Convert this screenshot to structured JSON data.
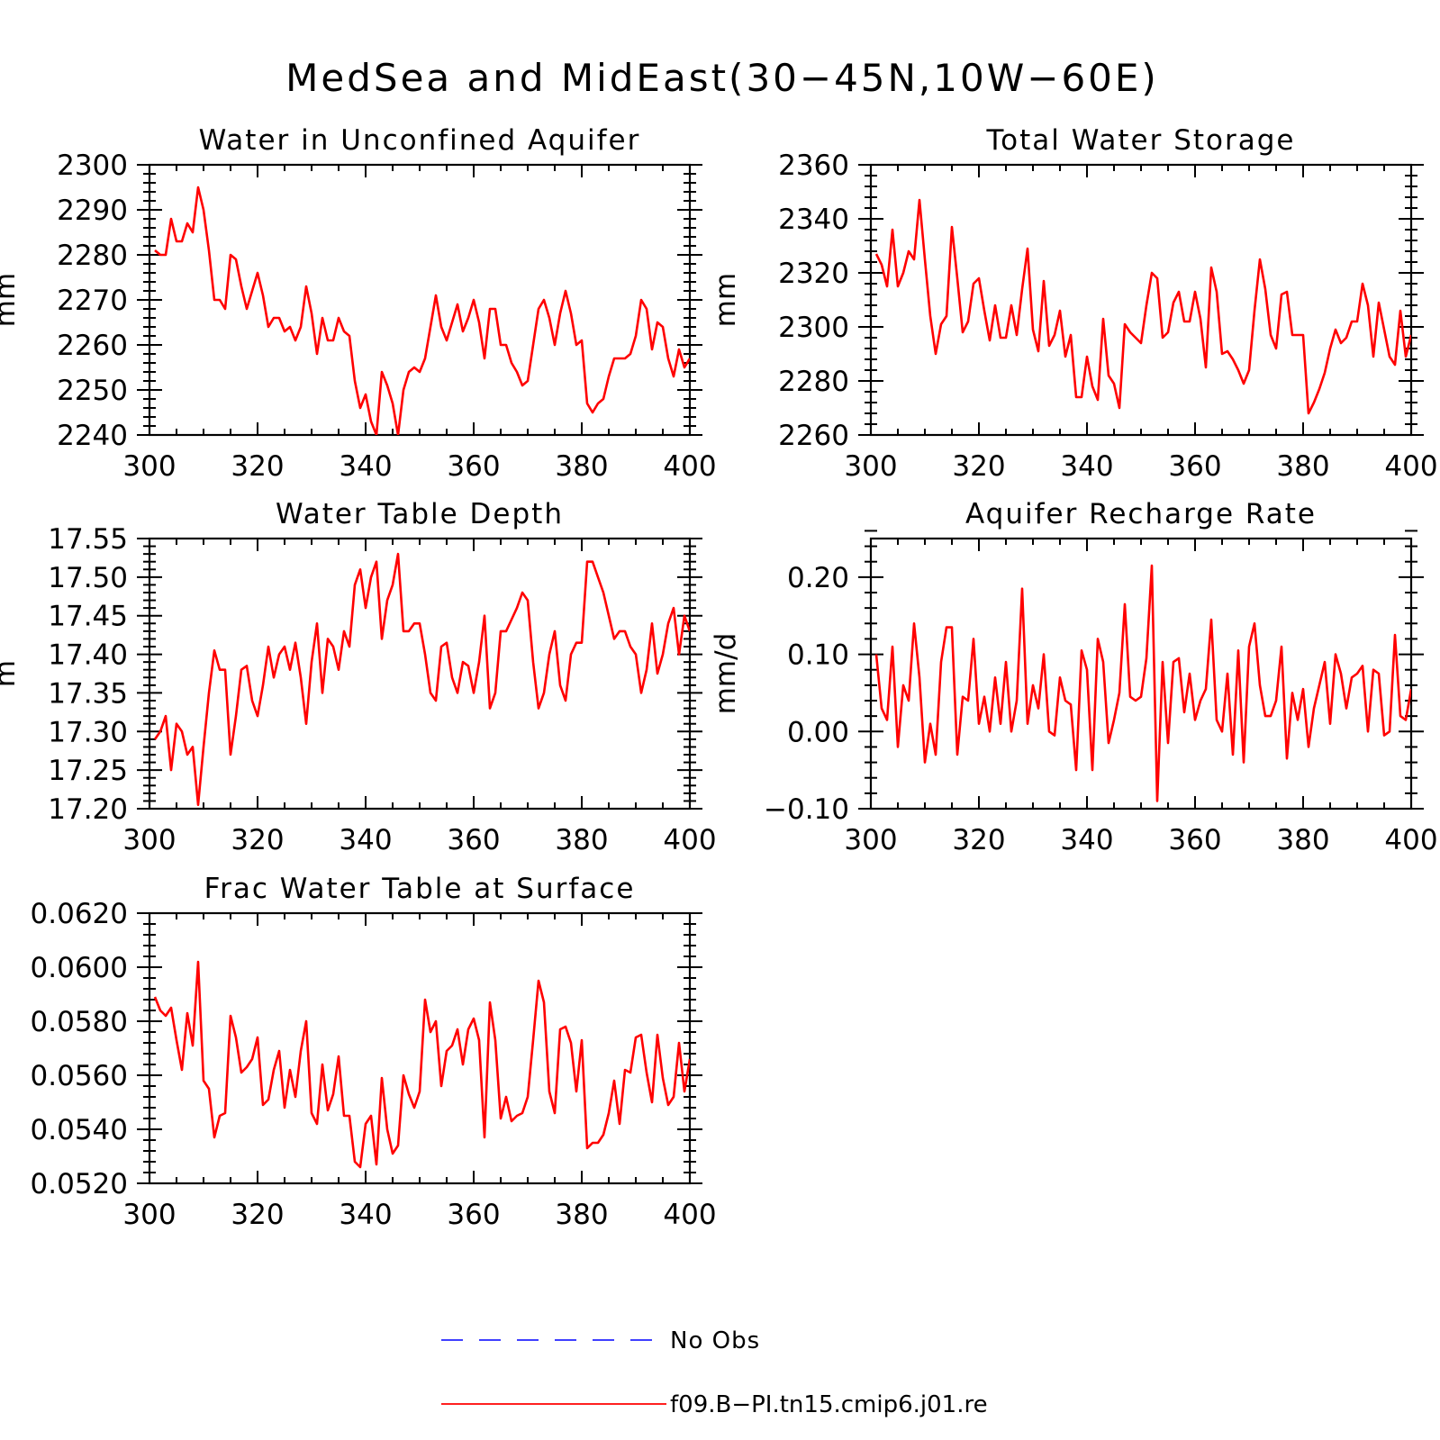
{
  "figure_title": "MedSea and MidEast(30−45N,10W−60E)",
  "colors": {
    "model": "#ff0000",
    "obs": "#0000ff",
    "axes": "#000000"
  },
  "legend": {
    "items": [
      {
        "label": "No Obs",
        "style": "dashed",
        "color": "#0000ff"
      },
      {
        "label": "f09.B−PI.tn15.cmip6.j01.re",
        "style": "solid",
        "color": "#ff0000"
      }
    ]
  },
  "chart_data": [
    {
      "id": "p1",
      "type": "line",
      "title": "Water in Unconfined Aquifer",
      "ylabel": "mm",
      "xlim": [
        300,
        400
      ],
      "ylim": [
        2240,
        2300
      ],
      "xticks": [
        "300",
        "320",
        "340",
        "360",
        "380",
        "400"
      ],
      "yticks": [
        "2240",
        "2250",
        "2260",
        "2270",
        "2280",
        "2290",
        "2300"
      ],
      "x_start": 301,
      "series": [
        {
          "values": [
            2281,
            2280,
            2280,
            2288,
            2283,
            2283,
            2287,
            2285,
            2295,
            2290,
            2281,
            2270,
            2270,
            2268,
            2280,
            2279,
            2273,
            2268,
            2272,
            2276,
            2271,
            2264,
            2266,
            2266,
            2263,
            2264,
            2261,
            2264,
            2273,
            2267,
            2258,
            2266,
            2261,
            2261,
            2266,
            2263,
            2262,
            2252,
            2246,
            2249,
            2243,
            2240,
            2254,
            2251,
            2247,
            2240,
            2250,
            2254,
            2255,
            2254,
            2257,
            2264,
            2271,
            2264,
            2261,
            2265,
            2269,
            2263,
            2266,
            2270,
            2265,
            2257,
            2268,
            2268,
            2260,
            2260,
            2256,
            2254,
            2251,
            2252,
            2260,
            2268,
            2270,
            2266,
            2260,
            2267,
            2272,
            2267,
            2260,
            2261,
            2247,
            2245,
            2247,
            2248,
            2253,
            2257,
            2257,
            2257,
            2258,
            2262,
            2270,
            2268,
            2259,
            2265,
            2264,
            2257,
            2253,
            2259,
            2255,
            2257
          ]
        }
      ]
    },
    {
      "id": "p2",
      "type": "line",
      "title": "Total Water Storage",
      "ylabel": "mm",
      "xlim": [
        300,
        400
      ],
      "ylim": [
        2260,
        2360
      ],
      "xticks": [
        "300",
        "320",
        "340",
        "360",
        "380",
        "400"
      ],
      "yticks": [
        "2260",
        "2280",
        "2300",
        "2320",
        "2340",
        "2360"
      ],
      "x_start": 301,
      "series": [
        {
          "values": [
            2327,
            2323,
            2315,
            2336,
            2315,
            2320,
            2328,
            2325,
            2347,
            2325,
            2304,
            2290,
            2301,
            2304,
            2337,
            2318,
            2298,
            2302,
            2316,
            2318,
            2306,
            2295,
            2308,
            2296,
            2296,
            2308,
            2297,
            2314,
            2329,
            2299,
            2291,
            2317,
            2293,
            2297,
            2306,
            2289,
            2297,
            2274,
            2274,
            2289,
            2278,
            2273,
            2303,
            2282,
            2279,
            2270,
            2301,
            2298,
            2296,
            2294,
            2308,
            2320,
            2318,
            2296,
            2298,
            2309,
            2313,
            2302,
            2302,
            2313,
            2303,
            2285,
            2322,
            2313,
            2290,
            2291,
            2288,
            2284,
            2279,
            2284,
            2306,
            2325,
            2314,
            2297,
            2292,
            2312,
            2313,
            2297,
            2297,
            2297,
            2268,
            2272,
            2277,
            2283,
            2292,
            2299,
            2294,
            2296,
            2302,
            2302,
            2316,
            2308,
            2289,
            2309,
            2299,
            2289,
            2286,
            2306,
            2289,
            2297
          ]
        }
      ]
    },
    {
      "id": "p3",
      "type": "line",
      "title": "Water Table Depth",
      "ylabel": "m",
      "xlim": [
        300,
        400
      ],
      "ylim": [
        17.2,
        17.55
      ],
      "xticks": [
        "300",
        "320",
        "340",
        "360",
        "380",
        "400"
      ],
      "yticks": [
        "17.20",
        "17.25",
        "17.30",
        "17.35",
        "17.40",
        "17.45",
        "17.50",
        "17.55"
      ],
      "x_start": 301,
      "series": [
        {
          "values": [
            17.29,
            17.3,
            17.32,
            17.25,
            17.31,
            17.3,
            17.27,
            17.28,
            17.205,
            17.28,
            17.35,
            17.405,
            17.38,
            17.38,
            17.27,
            17.32,
            17.38,
            17.385,
            17.34,
            17.32,
            17.36,
            17.41,
            17.37,
            17.4,
            17.41,
            17.38,
            17.415,
            17.37,
            17.31,
            17.39,
            17.44,
            17.35,
            17.42,
            17.41,
            17.38,
            17.43,
            17.41,
            17.49,
            17.51,
            17.46,
            17.5,
            17.52,
            17.42,
            17.47,
            17.49,
            17.53,
            17.43,
            17.43,
            17.44,
            17.44,
            17.4,
            17.35,
            17.34,
            17.41,
            17.415,
            17.37,
            17.35,
            17.39,
            17.385,
            17.35,
            17.39,
            17.45,
            17.33,
            17.35,
            17.43,
            17.43,
            17.445,
            17.46,
            17.48,
            17.47,
            17.39,
            17.33,
            17.35,
            17.4,
            17.43,
            17.36,
            17.34,
            17.4,
            17.415,
            17.415,
            17.52,
            17.52,
            17.5,
            17.48,
            17.45,
            17.42,
            17.43,
            17.43,
            17.41,
            17.4,
            17.35,
            17.38,
            17.44,
            17.375,
            17.4,
            17.44,
            17.46,
            17.4,
            17.45,
            17.43
          ]
        }
      ]
    },
    {
      "id": "p4",
      "type": "line",
      "title": "Aquifer Recharge Rate",
      "ylabel": "mm/d",
      "xlim": [
        300,
        400
      ],
      "ylim": [
        -0.1,
        0.25
      ],
      "xticks": [
        "300",
        "320",
        "340",
        "360",
        "380",
        "400"
      ],
      "yticks": [
        "−0.10",
        "0.00",
        "0.10",
        "0.20"
      ],
      "x_start": 301,
      "series": [
        {
          "values": [
            0.1,
            0.03,
            0.015,
            0.11,
            -0.02,
            0.06,
            0.04,
            0.14,
            0.07,
            -0.04,
            0.01,
            -0.03,
            0.09,
            0.135,
            0.135,
            -0.03,
            0.045,
            0.04,
            0.12,
            0.01,
            0.045,
            0.0,
            0.07,
            0.01,
            0.09,
            0.0,
            0.04,
            0.185,
            0.01,
            0.06,
            0.03,
            0.1,
            0.0,
            -0.005,
            0.07,
            0.04,
            0.035,
            -0.05,
            0.105,
            0.08,
            -0.05,
            0.12,
            0.09,
            -0.015,
            0.015,
            0.05,
            0.165,
            0.045,
            0.04,
            0.045,
            0.095,
            0.215,
            -0.09,
            0.09,
            -0.015,
            0.09,
            0.095,
            0.025,
            0.075,
            0.015,
            0.04,
            0.055,
            0.145,
            0.015,
            0.0,
            0.075,
            -0.03,
            0.105,
            -0.04,
            0.11,
            0.14,
            0.06,
            0.02,
            0.02,
            0.04,
            0.11,
            -0.035,
            0.05,
            0.015,
            0.055,
            -0.02,
            0.03,
            0.06,
            0.09,
            0.01,
            0.1,
            0.075,
            0.03,
            0.07,
            0.075,
            0.085,
            0.0,
            0.08,
            0.075,
            -0.005,
            0.0,
            0.125,
            0.02,
            0.015,
            0.055
          ]
        }
      ]
    },
    {
      "id": "p5",
      "type": "line",
      "title": "Frac Water Table at Surface",
      "ylabel": "",
      "xlim": [
        300,
        400
      ],
      "ylim": [
        0.052,
        0.062
      ],
      "xticks": [
        "300",
        "320",
        "340",
        "360",
        "380",
        "400"
      ],
      "yticks": [
        "0.0520",
        "0.0540",
        "0.0560",
        "0.0580",
        "0.0600",
        "0.0620"
      ],
      "x_start": 301,
      "series": [
        {
          "values": [
            0.0589,
            0.0584,
            0.0582,
            0.0585,
            0.0573,
            0.0562,
            0.0583,
            0.0571,
            0.0602,
            0.0558,
            0.0555,
            0.0537,
            0.0545,
            0.0546,
            0.0582,
            0.0574,
            0.0561,
            0.0563,
            0.0566,
            0.0574,
            0.0549,
            0.0551,
            0.0562,
            0.0569,
            0.0548,
            0.0562,
            0.0552,
            0.0569,
            0.058,
            0.0546,
            0.0542,
            0.0564,
            0.0547,
            0.0553,
            0.0567,
            0.0545,
            0.0545,
            0.0528,
            0.0526,
            0.0542,
            0.0545,
            0.0527,
            0.0559,
            0.054,
            0.0531,
            0.0534,
            0.056,
            0.0553,
            0.0548,
            0.0554,
            0.0588,
            0.0576,
            0.058,
            0.0556,
            0.0569,
            0.0571,
            0.0577,
            0.0564,
            0.0577,
            0.0581,
            0.0573,
            0.0537,
            0.0587,
            0.0573,
            0.0544,
            0.0552,
            0.0543,
            0.0545,
            0.0546,
            0.0552,
            0.0573,
            0.0595,
            0.0587,
            0.0554,
            0.0546,
            0.0577,
            0.0578,
            0.0572,
            0.0554,
            0.0573,
            0.0533,
            0.0535,
            0.0535,
            0.0538,
            0.0546,
            0.0558,
            0.0542,
            0.0562,
            0.0561,
            0.0574,
            0.0575,
            0.0561,
            0.055,
            0.0575,
            0.0559,
            0.0549,
            0.0552,
            0.0572,
            0.0554,
            0.0566
          ]
        }
      ]
    }
  ]
}
